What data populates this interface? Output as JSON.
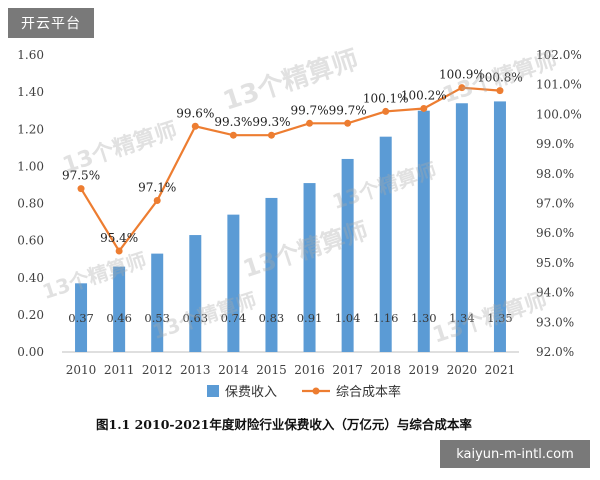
{
  "overlay": {
    "top_left_badge": "开云平台",
    "bottom_right_badge": "kaiyun-m-intl.com",
    "watermark_text": "13个精算师"
  },
  "chart_data": {
    "type": "bar",
    "caption": "图1.1  2010-2021年度财险行业保费收入（万亿元）与综合成本率",
    "categories": [
      "2010",
      "2011",
      "2012",
      "2013",
      "2014",
      "2015",
      "2016",
      "2017",
      "2018",
      "2019",
      "2020",
      "2021"
    ],
    "series": [
      {
        "name": "保费收入",
        "type": "bar",
        "axis": "left",
        "color": "#5b9bd5",
        "values": [
          0.37,
          0.46,
          0.53,
          0.63,
          0.74,
          0.83,
          0.91,
          1.04,
          1.16,
          1.3,
          1.34,
          1.35
        ],
        "labels": [
          "0.37",
          "0.46",
          "0.53",
          "0.63",
          "0.74",
          "0.83",
          "0.91",
          "1.04",
          "1.16",
          "1.30",
          "1.34",
          "1.35"
        ]
      },
      {
        "name": "综合成本率",
        "type": "line",
        "axis": "right",
        "color": "#ed7d31",
        "values": [
          97.5,
          95.4,
          97.1,
          99.6,
          99.3,
          99.3,
          99.7,
          99.7,
          100.1,
          100.2,
          100.9,
          100.8
        ],
        "labels": [
          "97.5%",
          "95.4%",
          "97.1%",
          "99.6%",
          "99.3%",
          "99.3%",
          "99.7%",
          "99.7%",
          "100.1%",
          "100.2%",
          "100.9%",
          "100.8%"
        ]
      }
    ],
    "y_left": {
      "min": 0,
      "max": 1.6,
      "step": 0.2,
      "ticks": [
        "0.00",
        "0.20",
        "0.40",
        "0.60",
        "0.80",
        "1.00",
        "1.20",
        "1.40",
        "1.60"
      ]
    },
    "y_right": {
      "min": 92,
      "max": 102,
      "step": 1,
      "ticks": [
        "92.0%",
        "93.0%",
        "94.0%",
        "95.0%",
        "96.0%",
        "97.0%",
        "98.0%",
        "99.0%",
        "100.0%",
        "101.0%",
        "102.0%"
      ]
    },
    "grid": false,
    "legend_position": "bottom"
  }
}
